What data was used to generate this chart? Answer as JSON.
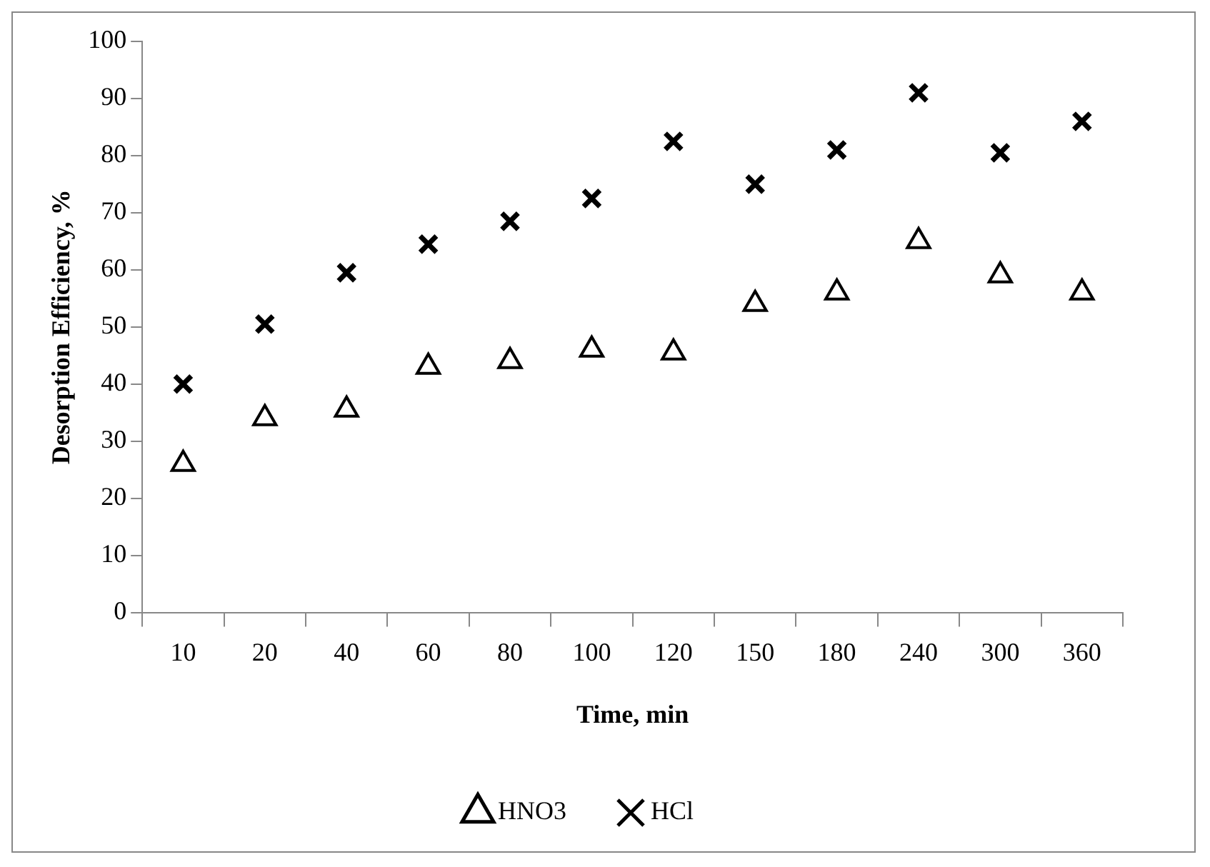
{
  "chart_data": {
    "type": "scatter",
    "xlabel": "Time, min",
    "ylabel": "Desorption Efficiency, %",
    "categories": [
      "10",
      "20",
      "40",
      "60",
      "80",
      "100",
      "120",
      "150",
      "180",
      "240",
      "300",
      "360"
    ],
    "series": [
      {
        "name": "HNO3",
        "color": "#000000",
        "marker": "triangle",
        "values": [
          26,
          34,
          35.5,
          43,
          44,
          46,
          45.5,
          54,
          56,
          65,
          59,
          56
        ]
      },
      {
        "name": "HCl",
        "color": "#000000",
        "marker": "cross",
        "values": [
          40,
          50.5,
          59.5,
          64.5,
          68.5,
          72.5,
          82.5,
          75,
          81,
          91,
          80.5,
          86
        ]
      }
    ],
    "ylim": [
      0,
      100
    ],
    "yticks": [
      0,
      10,
      20,
      30,
      40,
      50,
      60,
      70,
      80,
      90,
      100
    ],
    "grid": false,
    "legend": "bottom"
  }
}
